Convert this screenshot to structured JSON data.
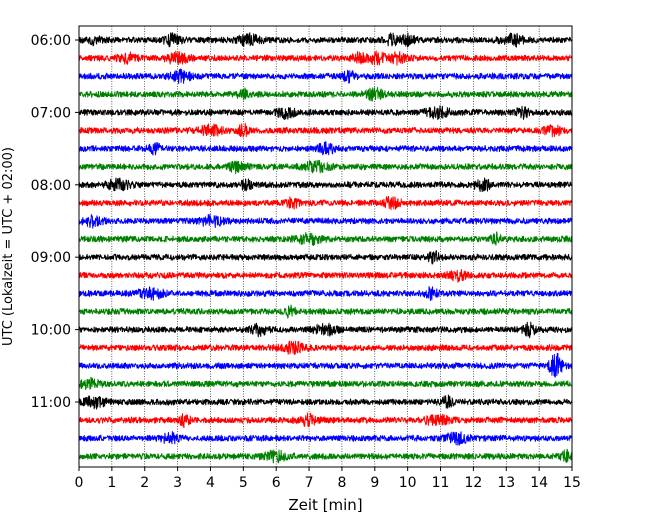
{
  "chart_data": {
    "type": "line",
    "title": "",
    "xlabel": "Zeit  [min]",
    "ylabel": "UTC (Lokalzeit = UTC + 02:00)",
    "xlim": [
      0,
      15
    ],
    "x_ticks": [
      0,
      1,
      2,
      3,
      4,
      5,
      6,
      7,
      8,
      9,
      10,
      11,
      12,
      13,
      14,
      15
    ],
    "x_tick_labels": [
      "0",
      "1",
      "2",
      "3",
      "4",
      "5",
      "6",
      "7",
      "8",
      "9",
      "10",
      "11",
      "12",
      "13",
      "14",
      "15"
    ],
    "y_tick_labels": [
      "06:00",
      "07:00",
      "08:00",
      "09:00",
      "10:00",
      "11:00"
    ],
    "grid": "vertical dotted at each minute",
    "trace_interval_min": 15,
    "trace_colors": [
      "#000000",
      "#ff0000",
      "#0000ff",
      "#008000"
    ],
    "traces": [
      {
        "start": "06:00",
        "color": "#000000",
        "events_min": [
          0.5,
          2.8,
          5.2,
          9.5,
          10.0,
          13.2
        ]
      },
      {
        "start": "06:15",
        "color": "#ff0000",
        "events_min": [
          1.5,
          3.0,
          8.5,
          9.0,
          9.6
        ]
      },
      {
        "start": "06:30",
        "color": "#0000ff",
        "events_min": [
          3.1,
          8.2
        ]
      },
      {
        "start": "06:45",
        "color": "#008000",
        "events_min": [
          5.0,
          9.0
        ]
      },
      {
        "start": "07:00",
        "color": "#000000",
        "events_min": [
          6.3,
          10.9,
          13.5
        ]
      },
      {
        "start": "07:15",
        "color": "#ff0000",
        "events_min": [
          4.0,
          5.0,
          14.4
        ]
      },
      {
        "start": "07:30",
        "color": "#0000ff",
        "events_min": [
          2.3,
          7.5
        ]
      },
      {
        "start": "07:45",
        "color": "#008000",
        "events_min": [
          4.8,
          7.2
        ]
      },
      {
        "start": "08:00",
        "color": "#000000",
        "events_min": [
          1.2,
          5.1,
          12.3
        ]
      },
      {
        "start": "08:15",
        "color": "#ff0000",
        "events_min": [
          6.5,
          9.5
        ]
      },
      {
        "start": "08:30",
        "color": "#0000ff",
        "events_min": [
          0.4,
          4.0
        ]
      },
      {
        "start": "08:45",
        "color": "#008000",
        "events_min": [
          7.0,
          12.7
        ]
      },
      {
        "start": "09:00",
        "color": "#000000",
        "events_min": [
          10.8
        ]
      },
      {
        "start": "09:15",
        "color": "#ff0000",
        "events_min": [
          11.5
        ]
      },
      {
        "start": "09:30",
        "color": "#0000ff",
        "events_min": [
          2.2,
          10.7
        ]
      },
      {
        "start": "09:45",
        "color": "#008000",
        "events_min": [
          6.4
        ]
      },
      {
        "start": "10:00",
        "color": "#000000",
        "events_min": [
          5.5,
          7.5,
          13.7
        ]
      },
      {
        "start": "10:15",
        "color": "#ff0000",
        "events_min": [
          6.5
        ]
      },
      {
        "start": "10:30",
        "color": "#0000ff",
        "events_min": [
          14.5
        ]
      },
      {
        "start": "10:45",
        "color": "#008000",
        "events_min": [
          0.3
        ]
      },
      {
        "start": "11:00",
        "color": "#000000",
        "events_min": [
          0.5,
          11.2
        ]
      },
      {
        "start": "11:15",
        "color": "#ff0000",
        "events_min": [
          3.2,
          7.0,
          10.9
        ]
      },
      {
        "start": "11:30",
        "color": "#0000ff",
        "events_min": [
          2.8,
          11.5
        ]
      },
      {
        "start": "11:45",
        "color": "#008000",
        "events_min": [
          6.0,
          14.8
        ]
      }
    ]
  }
}
